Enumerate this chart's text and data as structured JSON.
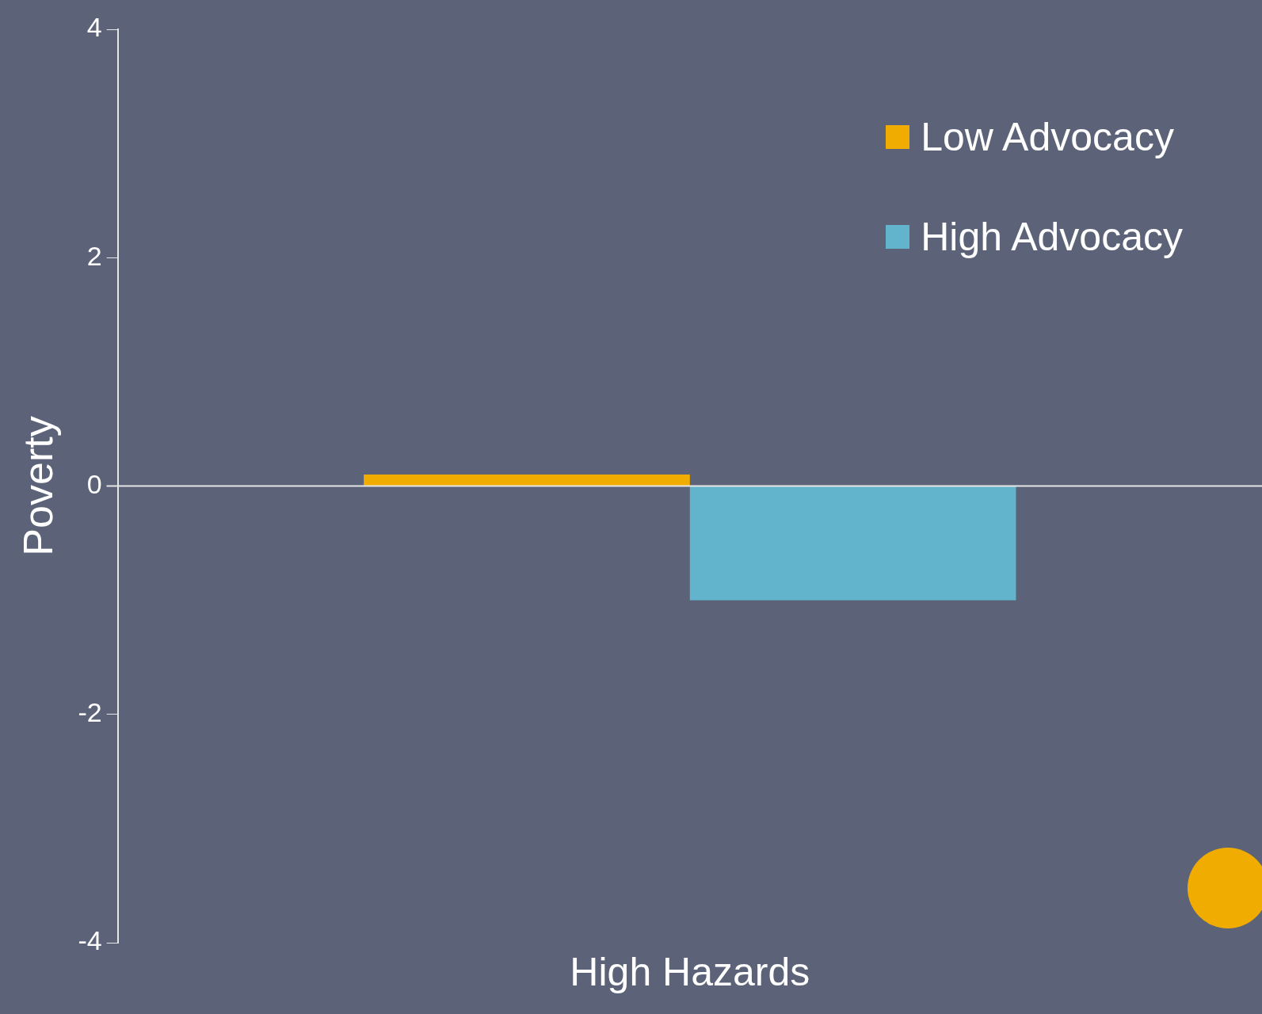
{
  "chart_data": {
    "type": "bar",
    "ylabel": "Poverty",
    "categories": [
      "High Hazards"
    ],
    "series": [
      {
        "name": "Low Advocacy",
        "color": "#f0ac00",
        "values": [
          0.1
        ]
      },
      {
        "name": "High Advocacy",
        "color": "#62b3cc",
        "values": [
          -1.0
        ]
      }
    ],
    "ylim": [
      -4,
      4
    ],
    "yticks": [
      -4,
      -2,
      0,
      2,
      4
    ],
    "grid": false,
    "legend": "top right",
    "ref_lines": [
      {
        "axis": "y",
        "value": 0,
        "color": "#e6e6e6"
      }
    ]
  }
}
